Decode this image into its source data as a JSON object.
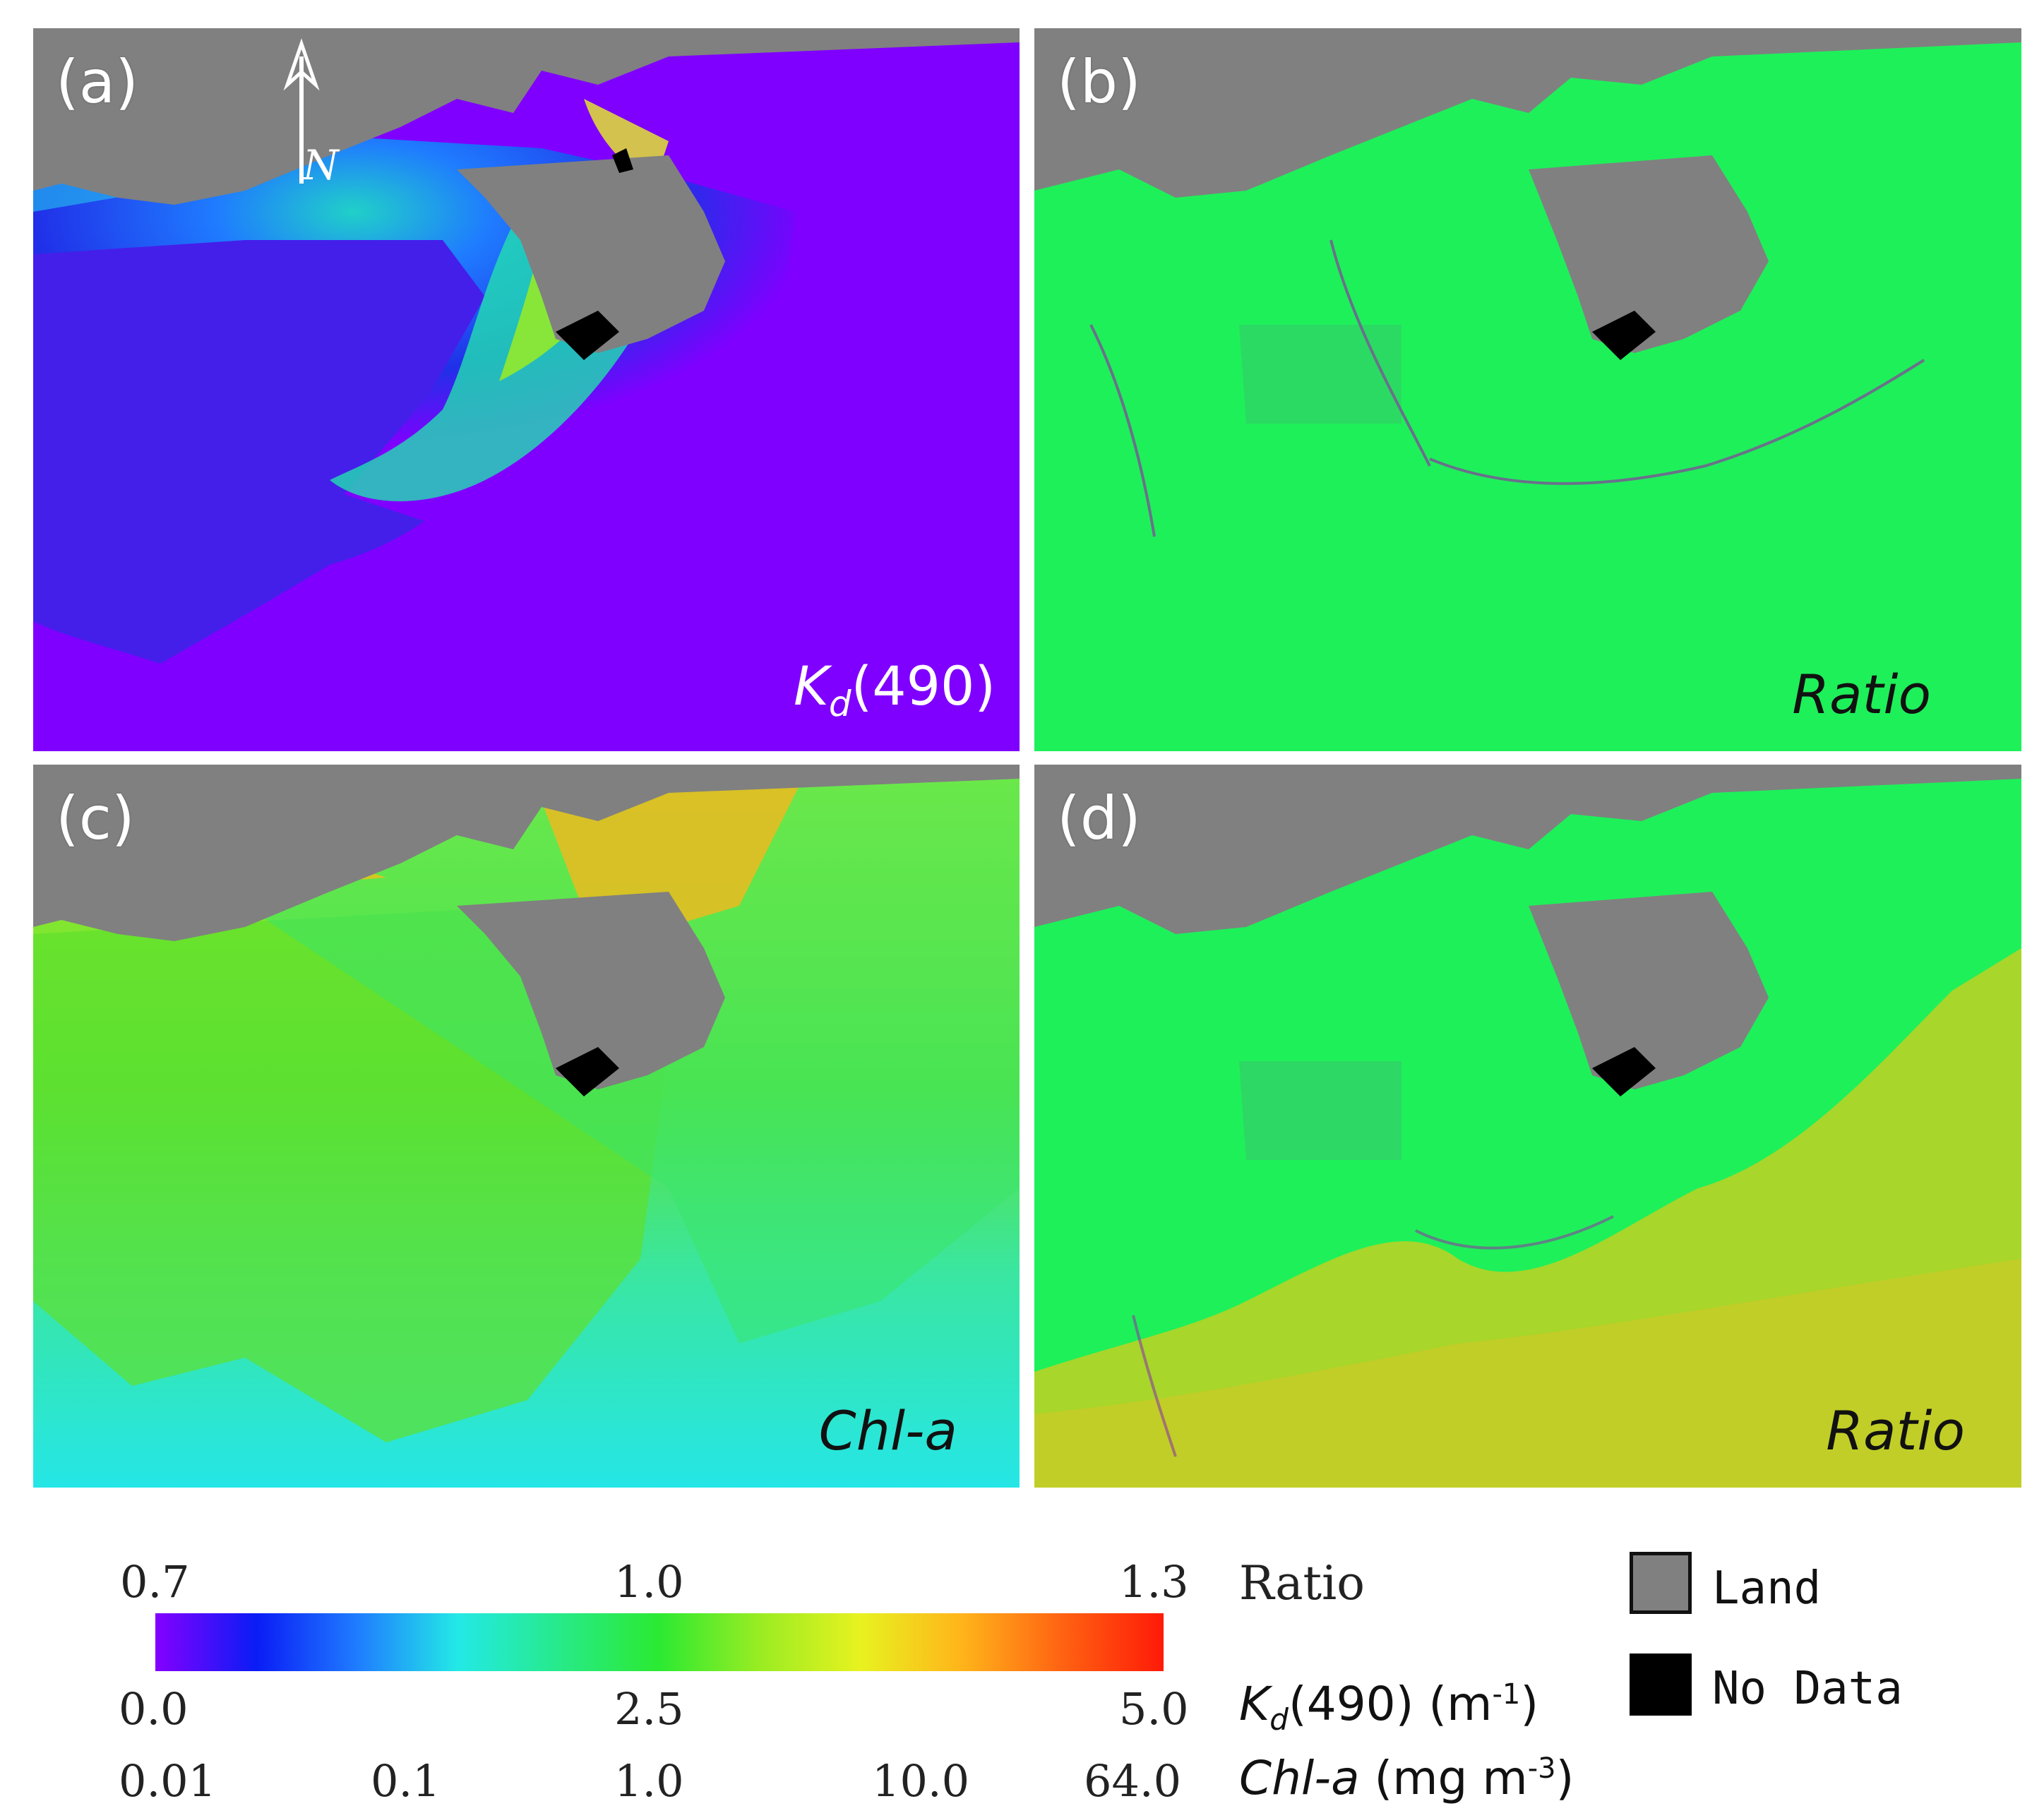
{
  "panels": {
    "a": {
      "label": "(a)",
      "product_main": "K",
      "product_sub": "d",
      "product_rest": "(490)",
      "north_label": "N"
    },
    "b": {
      "label": "(b)",
      "product": "Ratio"
    },
    "c": {
      "label": "(c)",
      "product": "Chl-a"
    },
    "d": {
      "label": "(d)",
      "product": "Ratio"
    }
  },
  "colors": {
    "land": "#808080",
    "no_data": "#000000",
    "ocean_offshore_kd": "#7f00ff",
    "ratio_neutral": "#1ef05a",
    "chl_nearshore": "#7ee21c",
    "chl_offshore": "#25e6e6"
  },
  "colorbar": {
    "gradient_colors": [
      "#8400ff",
      "#0a1cf5",
      "#1f7cff",
      "#23e9e6",
      "#27ea8a",
      "#2bea32",
      "#9aec22",
      "#e8f220",
      "#ffb41a",
      "#ff6212",
      "#ff1a08"
    ],
    "ratio": {
      "ticks": [
        "0.7",
        "1.0",
        "1.3"
      ],
      "label": "Ratio"
    },
    "kd490": {
      "ticks": [
        "0.0",
        "2.5",
        "5.0"
      ],
      "label_main": "K",
      "label_sub": "d",
      "label_rest": "(490) (m",
      "label_exp": "-1",
      "label_close": ")"
    },
    "chla": {
      "ticks": [
        "0.01",
        "0.1",
        "1.0",
        "10.0",
        "64.0"
      ],
      "label_main": "Chl-a",
      "label_rest": " (mg m",
      "label_exp": "-3",
      "label_close": ")"
    }
  },
  "legend": {
    "land_label": "Land",
    "nodata_label": "No Data"
  }
}
